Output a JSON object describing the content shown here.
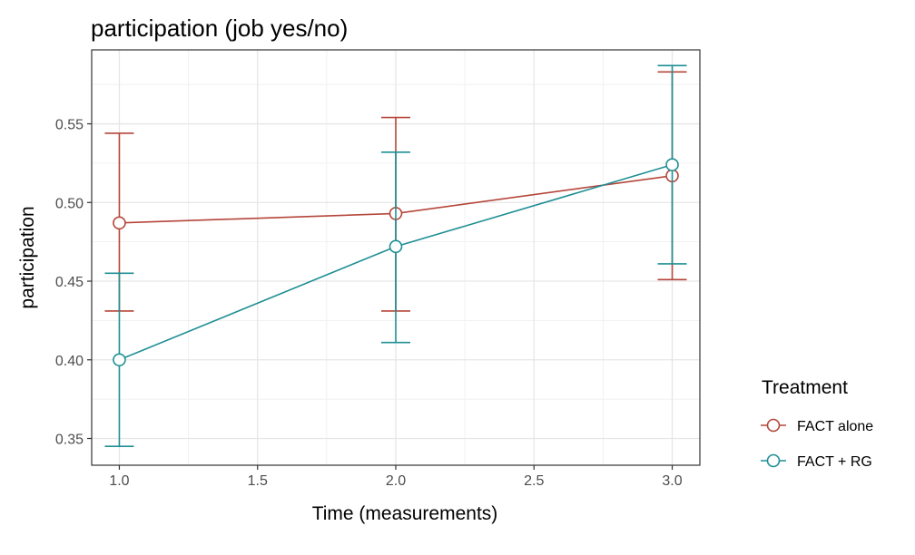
{
  "chart_data": {
    "type": "line",
    "title": "participation (job yes/no)",
    "xlabel": "Time (measurements)",
    "ylabel": "participation",
    "xlim": [
      0.9,
      3.1
    ],
    "ylim": [
      0.333,
      0.597
    ],
    "x_ticks": [
      1.0,
      1.5,
      2.0,
      2.5,
      3.0
    ],
    "x_tick_labels": [
      "1.0",
      "1.5",
      "2.0",
      "2.5",
      "3.0"
    ],
    "y_ticks": [
      0.35,
      0.4,
      0.45,
      0.5,
      0.55
    ],
    "y_tick_labels": [
      "0.35",
      "0.40",
      "0.45",
      "0.50",
      "0.55"
    ],
    "grid": true,
    "legend_position": "right",
    "legend_title": "Treatment",
    "series": [
      {
        "name": "FACT alone",
        "color": "#b5463a",
        "x": [
          1.0,
          2.0,
          3.0
        ],
        "y": [
          0.487,
          0.493,
          0.517
        ],
        "lower": [
          0.431,
          0.431,
          0.451
        ],
        "upper": [
          0.544,
          0.554,
          0.583
        ]
      },
      {
        "name": "FACT + RG",
        "color": "#1f8f94",
        "x": [
          1.0,
          2.0,
          3.0
        ],
        "y": [
          0.4,
          0.472,
          0.524
        ],
        "lower": [
          0.345,
          0.411,
          0.461
        ],
        "upper": [
          0.455,
          0.532,
          0.587
        ]
      }
    ]
  }
}
